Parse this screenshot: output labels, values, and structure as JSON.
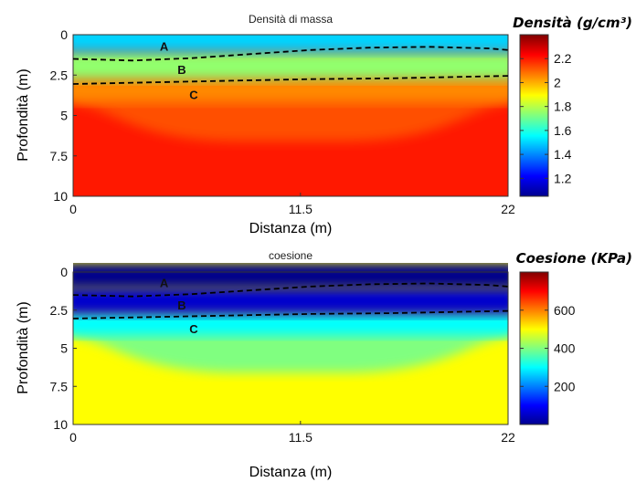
{
  "chart_data": [
    {
      "type": "heatmap",
      "title": "Densità di massa",
      "xlabel": "Distanza (m)",
      "ylabel": "Profondità (m)",
      "xlim": [
        0,
        22
      ],
      "ylim": [
        0,
        10
      ],
      "y_inverted": true,
      "x_ticks": [
        "0",
        "11.5",
        "22"
      ],
      "y_ticks": [
        "0",
        "2.5",
        "5",
        "7.5",
        "10"
      ],
      "colorbar": {
        "title": "Densità (g/cm³)",
        "range": [
          1.05,
          2.4
        ],
        "ticks": [
          "1.2",
          "1.4",
          "1.6",
          "1.8",
          "2",
          "2.2"
        ],
        "tick_values": [
          1.2,
          1.4,
          1.6,
          1.8,
          2.0,
          2.2
        ],
        "colormap": "jet"
      },
      "field": {
        "surface_value": 1.5,
        "layer_B_value": 1.75,
        "layer_C_value": 2.05,
        "deep_value": 2.2
      },
      "boundaries": [
        {
          "x": [
            0,
            3,
            6,
            9,
            12,
            15,
            18,
            21,
            22
          ],
          "y": [
            1.5,
            1.6,
            1.45,
            1.2,
            0.95,
            0.8,
            0.75,
            0.85,
            0.95
          ]
        },
        {
          "x": [
            0,
            4,
            8,
            12,
            16,
            20,
            22
          ],
          "y": [
            3.05,
            2.95,
            2.85,
            2.75,
            2.7,
            2.6,
            2.55
          ]
        }
      ],
      "annotations": [
        {
          "text": "A",
          "x": 4.6,
          "y": 0.7
        },
        {
          "text": "B",
          "x": 5.5,
          "y": 2.15
        },
        {
          "text": "C",
          "x": 6.1,
          "y": 3.7
        }
      ]
    },
    {
      "type": "heatmap",
      "title": "coesione",
      "xlabel": "Distanza (m)",
      "ylabel": "Profondità (m)",
      "xlim": [
        0,
        22
      ],
      "ylim": [
        0,
        10
      ],
      "y_inverted": true,
      "x_ticks": [
        "0",
        "11.5",
        "22"
      ],
      "y_ticks": [
        "0",
        "2.5",
        "5",
        "7.5",
        "10"
      ],
      "colorbar": {
        "title": "Coesione (KPa)",
        "range": [
          0,
          800
        ],
        "ticks": [
          "200",
          "400",
          "600"
        ],
        "tick_values": [
          200,
          400,
          600
        ],
        "colormap": "jet"
      },
      "field": {
        "surface_value": 10,
        "layer_B_value": 60,
        "layer_C_value": 300,
        "deep_value": 500
      },
      "boundaries": [
        {
          "x": [
            0,
            3,
            6,
            9,
            12,
            15,
            18,
            21,
            22
          ],
          "y": [
            1.5,
            1.6,
            1.45,
            1.2,
            0.95,
            0.8,
            0.75,
            0.85,
            0.95
          ]
        },
        {
          "x": [
            0,
            4,
            8,
            12,
            16,
            20,
            22
          ],
          "y": [
            3.05,
            2.95,
            2.85,
            2.75,
            2.7,
            2.6,
            2.55
          ]
        }
      ],
      "annotations": [
        {
          "text": "A",
          "x": 4.6,
          "y": 0.7
        },
        {
          "text": "B",
          "x": 5.5,
          "y": 2.15
        },
        {
          "text": "C",
          "x": 6.1,
          "y": 3.7
        }
      ]
    }
  ]
}
